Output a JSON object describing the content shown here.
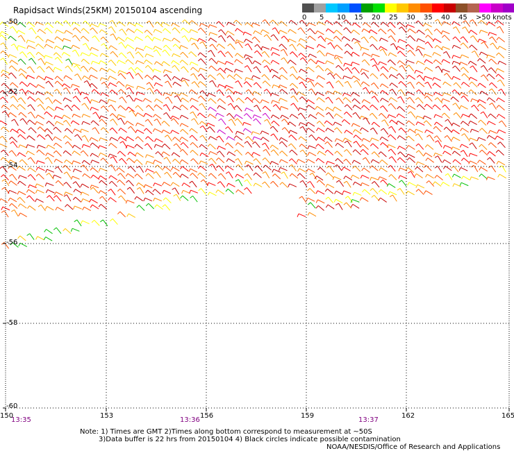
{
  "title": "Rapidsact Winds(25KM) 20150104 ascending",
  "legend": {
    "colors": [
      "#505050",
      "#a0a0a0",
      "#00c8ff",
      "#00a0ff",
      "#0050ff",
      "#00a000",
      "#00e000",
      "#ffff00",
      "#ffc800",
      "#ff8c00",
      "#ff5000",
      "#ff0000",
      "#c80000",
      "#8c5028",
      "#b46450",
      "#ff00ff",
      "#c800c8",
      "#a000c8",
      "#6400a0"
    ],
    "labels": [
      "0",
      "5",
      "10",
      "15",
      "20",
      "25",
      "30",
      "35",
      "40",
      "45",
      ">50 knots"
    ]
  },
  "map": {
    "lon_ticks": [
      "150",
      "153",
      "156",
      "159",
      "162",
      "165"
    ],
    "lat_ticks": [
      "-50",
      "-52",
      "-54",
      "-56",
      "-58",
      "-60"
    ],
    "times": [
      "13:35",
      "13:36",
      "13:37"
    ]
  },
  "notes": {
    "line1": "Note: 1) Times are GMT 2)Times along bottom correspond to measurement at ~50S",
    "line2": "3)Data buffer is 22 hrs from 20150104 4) Black circles indicate possible contamination",
    "credit": "NOAA/NESDIS/Office of Research and Applications"
  }
}
